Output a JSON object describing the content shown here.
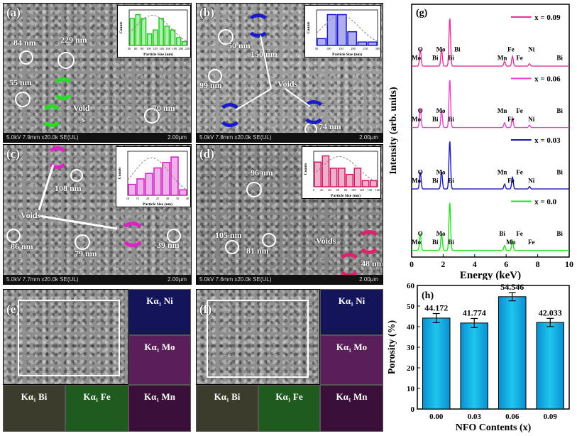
{
  "panels": {
    "a": {
      "label": "(a)",
      "footer": "5.0kV 7.9mm x20.0k SE(UL)",
      "scale": "2.00μm",
      "annotations": [
        "84 nm",
        "229 nm",
        "55 nm",
        "70 nm",
        "Void",
        "s"
      ],
      "void_color": "#22e022",
      "hist_color": "#22cc22",
      "hist": {
        "xlabel": "Particle Size (nm)",
        "ylabel": "Counts",
        "ticks": [
          "40",
          "60",
          "80",
          "100",
          "120",
          "140",
          "160",
          "180",
          "200",
          "220"
        ],
        "values": [
          7,
          8,
          7,
          3,
          4,
          7,
          5,
          4,
          2,
          1
        ]
      }
    },
    "b": {
      "label": "(b)",
      "footer": "5.0kV 7.8mm x20.0k SE(UL)",
      "scale": "2.00μm",
      "annotations": [
        "50 nm",
        "150 nm",
        "99 nm",
        "Voids",
        "74 nm"
      ],
      "void_color": "#1a1acc",
      "hist_color": "#1a1ad0",
      "hist": {
        "xlabel": "Particle Size (nm)",
        "ylabel": "Counts",
        "ticks": [
          "50",
          "100",
          "150",
          "200",
          "250",
          "300"
        ],
        "values": [
          2,
          9,
          9,
          4,
          1,
          1
        ]
      }
    },
    "c": {
      "label": "(c)",
      "footer": "5.0kV 7.7mm x20.0k SE(UL)",
      "scale": "2.00μm",
      "annotations": [
        "108 nm",
        "Voids",
        "86 nm",
        "79 nm",
        "39 nm"
      ],
      "void_color": "#e020c8",
      "hist_color": "#d020c0",
      "hist": {
        "xlabel": "Particle Size (nm)",
        "ylabel": "Counts",
        "ticks": [
          "10",
          "15",
          "20",
          "25",
          "30",
          "35",
          "40"
        ],
        "values": [
          2,
          3,
          4,
          5,
          6,
          7,
          1
        ]
      }
    },
    "d": {
      "label": "(d)",
      "footer": "5.0kV 7.6mm x20.0k SE(UL)",
      "scale": "2.00μm",
      "annotations": [
        "96 nm",
        "105 nm",
        "81 nm",
        "Voids",
        "48 nm"
      ],
      "void_color": "#e0206a",
      "hist_color": "#d01c64",
      "hist": {
        "xlabel": "Particle Size (nm)",
        "ylabel": "Counts",
        "ticks": [
          "0",
          "20",
          "40",
          "60",
          "80",
          "100",
          "120",
          "140",
          "160"
        ],
        "values": [
          4,
          5,
          3,
          3,
          2,
          3,
          1,
          1
        ]
      }
    }
  },
  "eds_maps": {
    "e": {
      "label": "(e)",
      "maps": [
        "Kα₁ Ni",
        "Kα₁ Mo",
        "Kα₁ Mn",
        "Kα₁ Bi",
        "Kα₁ Fe"
      ]
    },
    "f": {
      "label": "(f)",
      "maps": [
        "Kα₁ Ni",
        "Kα₁ Mo",
        "Kα₁ Mn",
        "Kα₁ Bi",
        "Kα₁ Fe"
      ]
    },
    "colors": {
      "Ni": "#14145a",
      "Mo": "#5a1f5a",
      "Mn": "#3a103a",
      "Bi": "#3c3c2c",
      "Fe": "#1f5a1f"
    }
  },
  "chart_data": [
    {
      "type": "line",
      "panel_label": "(g)",
      "xlabel": "Energy (keV)",
      "ylabel": "Intensity (arb. units)",
      "xlim": [
        0,
        10
      ],
      "xticks": [
        0,
        2,
        4,
        6,
        8,
        10
      ],
      "series": [
        {
          "name": "x = 0.09",
          "color": "#e8319b",
          "peaks": [
            [
              0.55,
              0.35
            ],
            [
              1.9,
              0.35
            ],
            [
              2.42,
              1.0
            ],
            [
              5.9,
              0.1
            ],
            [
              6.4,
              0.2
            ],
            [
              7.48,
              0.05
            ]
          ],
          "labels": [
            "Mo",
            "O",
            "Bi",
            "Mo",
            "Bi",
            "Bi",
            "Mn",
            "Fe",
            "Fe",
            "Ni",
            "Bi"
          ]
        },
        {
          "name": "x = 0.06",
          "color": "#e844c8",
          "peaks": [
            [
              0.55,
              0.4
            ],
            [
              1.9,
              0.35
            ],
            [
              2.42,
              1.0
            ],
            [
              5.9,
              0.1
            ],
            [
              6.4,
              0.2
            ],
            [
              7.48,
              0.05
            ]
          ],
          "labels": [
            "Mo",
            "O",
            "Bi",
            "Mo",
            "Bi",
            "Mn",
            "Fe",
            "Fe",
            "Ni",
            "Bi"
          ]
        },
        {
          "name": "x = 0.03",
          "color": "#1818b8",
          "peaks": [
            [
              0.55,
              0.35
            ],
            [
              1.9,
              0.35
            ],
            [
              2.42,
              1.0
            ],
            [
              5.9,
              0.1
            ],
            [
              6.4,
              0.25
            ],
            [
              7.48,
              0.05
            ]
          ],
          "labels": [
            "Mo",
            "O",
            "Bi",
            "Mo",
            "Bi",
            "Mn",
            "Fe",
            "Fe",
            "Ni",
            "Bi"
          ]
        },
        {
          "name": "x = 0.0",
          "color": "#22e022",
          "peaks": [
            [
              0.55,
              0.35
            ],
            [
              1.9,
              0.35
            ],
            [
              2.42,
              1.0
            ],
            [
              5.9,
              0.1
            ],
            [
              6.4,
              0.2
            ]
          ],
          "labels": [
            "Mo",
            "O",
            "Bi",
            "Mo",
            "Bi",
            "Bi",
            "Mn",
            "Fe",
            "Fe",
            "Bi"
          ]
        }
      ]
    },
    {
      "type": "bar",
      "panel_label": "(h)",
      "categories": [
        "0.00",
        "0.03",
        "0.06",
        "0.09"
      ],
      "values": [
        44.172,
        41.774,
        54.546,
        42.033
      ],
      "value_labels": [
        "44.172",
        "41.774",
        "54.546",
        "42.033"
      ],
      "errors": [
        2.2,
        2.2,
        2.0,
        2.0
      ],
      "xlabel": "NFO Contents (x)",
      "ylabel": "Porosity (%)",
      "ylim": [
        0,
        60
      ],
      "yticks": [
        0,
        10,
        20,
        30,
        40,
        50,
        60
      ],
      "bar_color": "#1ec6ee"
    }
  ]
}
